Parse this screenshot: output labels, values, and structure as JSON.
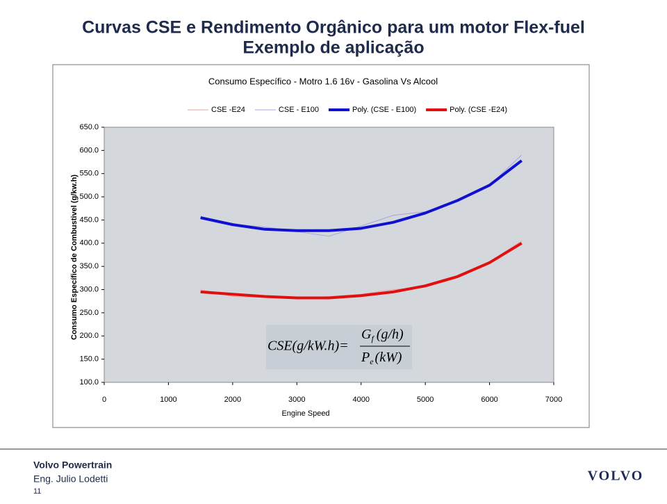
{
  "slide": {
    "title_line1": "Curvas CSE e Rendimento Orgânico para um motor Flex-fuel",
    "title_line2": "Exemplo de aplicação"
  },
  "chart_data": {
    "type": "line",
    "title": "Consumo Específico - Motro 1.6 16v - Gasolina Vs Alcool",
    "x_label": "Engine Speed",
    "y_label": "Consumo Específico de Combustivel (g/kw.h)",
    "x": [
      1500,
      2000,
      2500,
      3000,
      3500,
      4000,
      4500,
      5000,
      5500,
      6000,
      6500
    ],
    "series": [
      {
        "name": "CSE -E24",
        "color": "#e9a3a3",
        "width": 1,
        "values": [
          300,
          285,
          283,
          280,
          285,
          290,
          300,
          305,
          325,
          360,
          405
        ]
      },
      {
        "name": "CSE - E100",
        "color": "#a3a3e6",
        "width": 1,
        "values": [
          455,
          441,
          435,
          425,
          415,
          437,
          460,
          468,
          490,
          525,
          590
        ]
      },
      {
        "name": "Poly. (CSE - E100)",
        "color": "#1010d0",
        "width": 4,
        "values": [
          455,
          440,
          430,
          427,
          427,
          432,
          445,
          465,
          492,
          525,
          578
        ]
      },
      {
        "name": "Poly. (CSE -E24)",
        "color": "#e01010",
        "width": 4,
        "values": [
          295,
          290,
          285,
          282,
          282,
          287,
          295,
          308,
          328,
          358,
          400
        ]
      }
    ],
    "xlim": [
      0,
      7000
    ],
    "xticks": [
      0,
      1000,
      2000,
      3000,
      4000,
      5000,
      6000,
      7000
    ],
    "ylim": [
      100,
      650
    ],
    "yticks": [
      {
        "value": 100,
        "label": "100.0"
      },
      {
        "value": 150,
        "label": "150.0"
      },
      {
        "value": 200,
        "label": "200.0"
      },
      {
        "value": 250,
        "label": "250.0"
      },
      {
        "value": 300,
        "label": "300.0"
      },
      {
        "value": 350,
        "label": "350.0"
      },
      {
        "value": 400,
        "label": "400.0"
      },
      {
        "value": 450,
        "label": "450.0"
      },
      {
        "value": 500,
        "label": "500.0"
      },
      {
        "value": 550,
        "label": "550.0"
      },
      {
        "value": 600,
        "label": "600.0"
      },
      {
        "value": 650,
        "label": "650.0"
      }
    ],
    "legend": "top"
  },
  "formula": {
    "lhs": "CSE(g/kW.h)=",
    "num_symbol": "G",
    "num_sub": "f",
    "num_unit": "(g/h)",
    "den_symbol": "P",
    "den_sub": "e",
    "den_unit": "(kW)"
  },
  "footer": {
    "company": "Volvo Powertrain",
    "author": "Eng. Julio Lodetti",
    "page": "11",
    "logo": "VOLVO"
  }
}
